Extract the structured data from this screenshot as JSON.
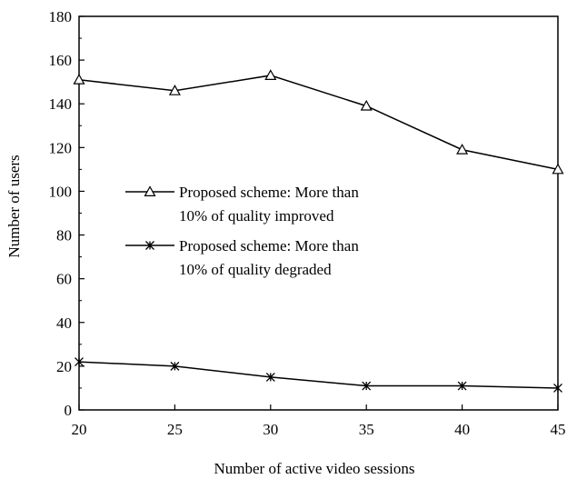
{
  "chart_data": {
    "type": "line",
    "title": "",
    "xlabel": "Number of active video sessions",
    "ylabel": "Number of users",
    "x": [
      20,
      25,
      30,
      35,
      40,
      45
    ],
    "xlim": [
      20,
      45
    ],
    "ylim": [
      0,
      180
    ],
    "xticks": [
      "20",
      "25",
      "30",
      "35",
      "40",
      "45"
    ],
    "yticks": [
      "0",
      "20",
      "40",
      "60",
      "80",
      "100",
      "120",
      "140",
      "160",
      "180"
    ],
    "grid": false,
    "legend_position": "center-left",
    "series": [
      {
        "name": "Proposed scheme: More than 10% of quality improved",
        "legend_lines": [
          "Proposed scheme: More than",
          "10% of quality improved"
        ],
        "marker": "triangle",
        "values": [
          151,
          146,
          153,
          139,
          119,
          110
        ]
      },
      {
        "name": "Proposed scheme: More than 10% of quality degraded",
        "legend_lines": [
          "Proposed scheme: More than",
          "10% of quality degraded"
        ],
        "marker": "x",
        "values": [
          22,
          20,
          15,
          11,
          11,
          10
        ]
      }
    ]
  }
}
